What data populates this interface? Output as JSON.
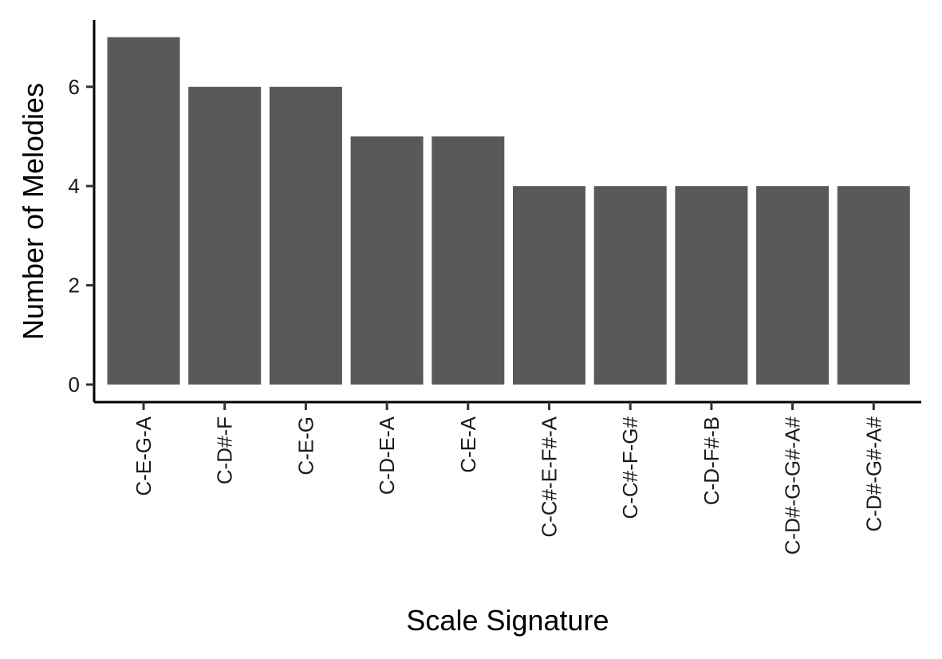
{
  "chart_data": {
    "type": "bar",
    "title": "",
    "xlabel": "Scale Signature",
    "ylabel": "Number of Melodies",
    "categories": [
      "C-E-G-A",
      "C-D#-F",
      "C-E-G",
      "C-D-E-A",
      "C-E-A",
      "C-C#-E-F#-A",
      "C-C#-F-G#",
      "C-D-F#-B",
      "C-D#-G-G#-A#",
      "C-D#-G#-A#"
    ],
    "values": [
      7,
      6,
      6,
      5,
      5,
      4,
      4,
      4,
      4,
      4
    ],
    "ylim": [
      0,
      7
    ],
    "yticks": [
      0,
      2,
      4,
      6
    ],
    "grid": false,
    "legend": "none",
    "bar_color": "#595959"
  }
}
